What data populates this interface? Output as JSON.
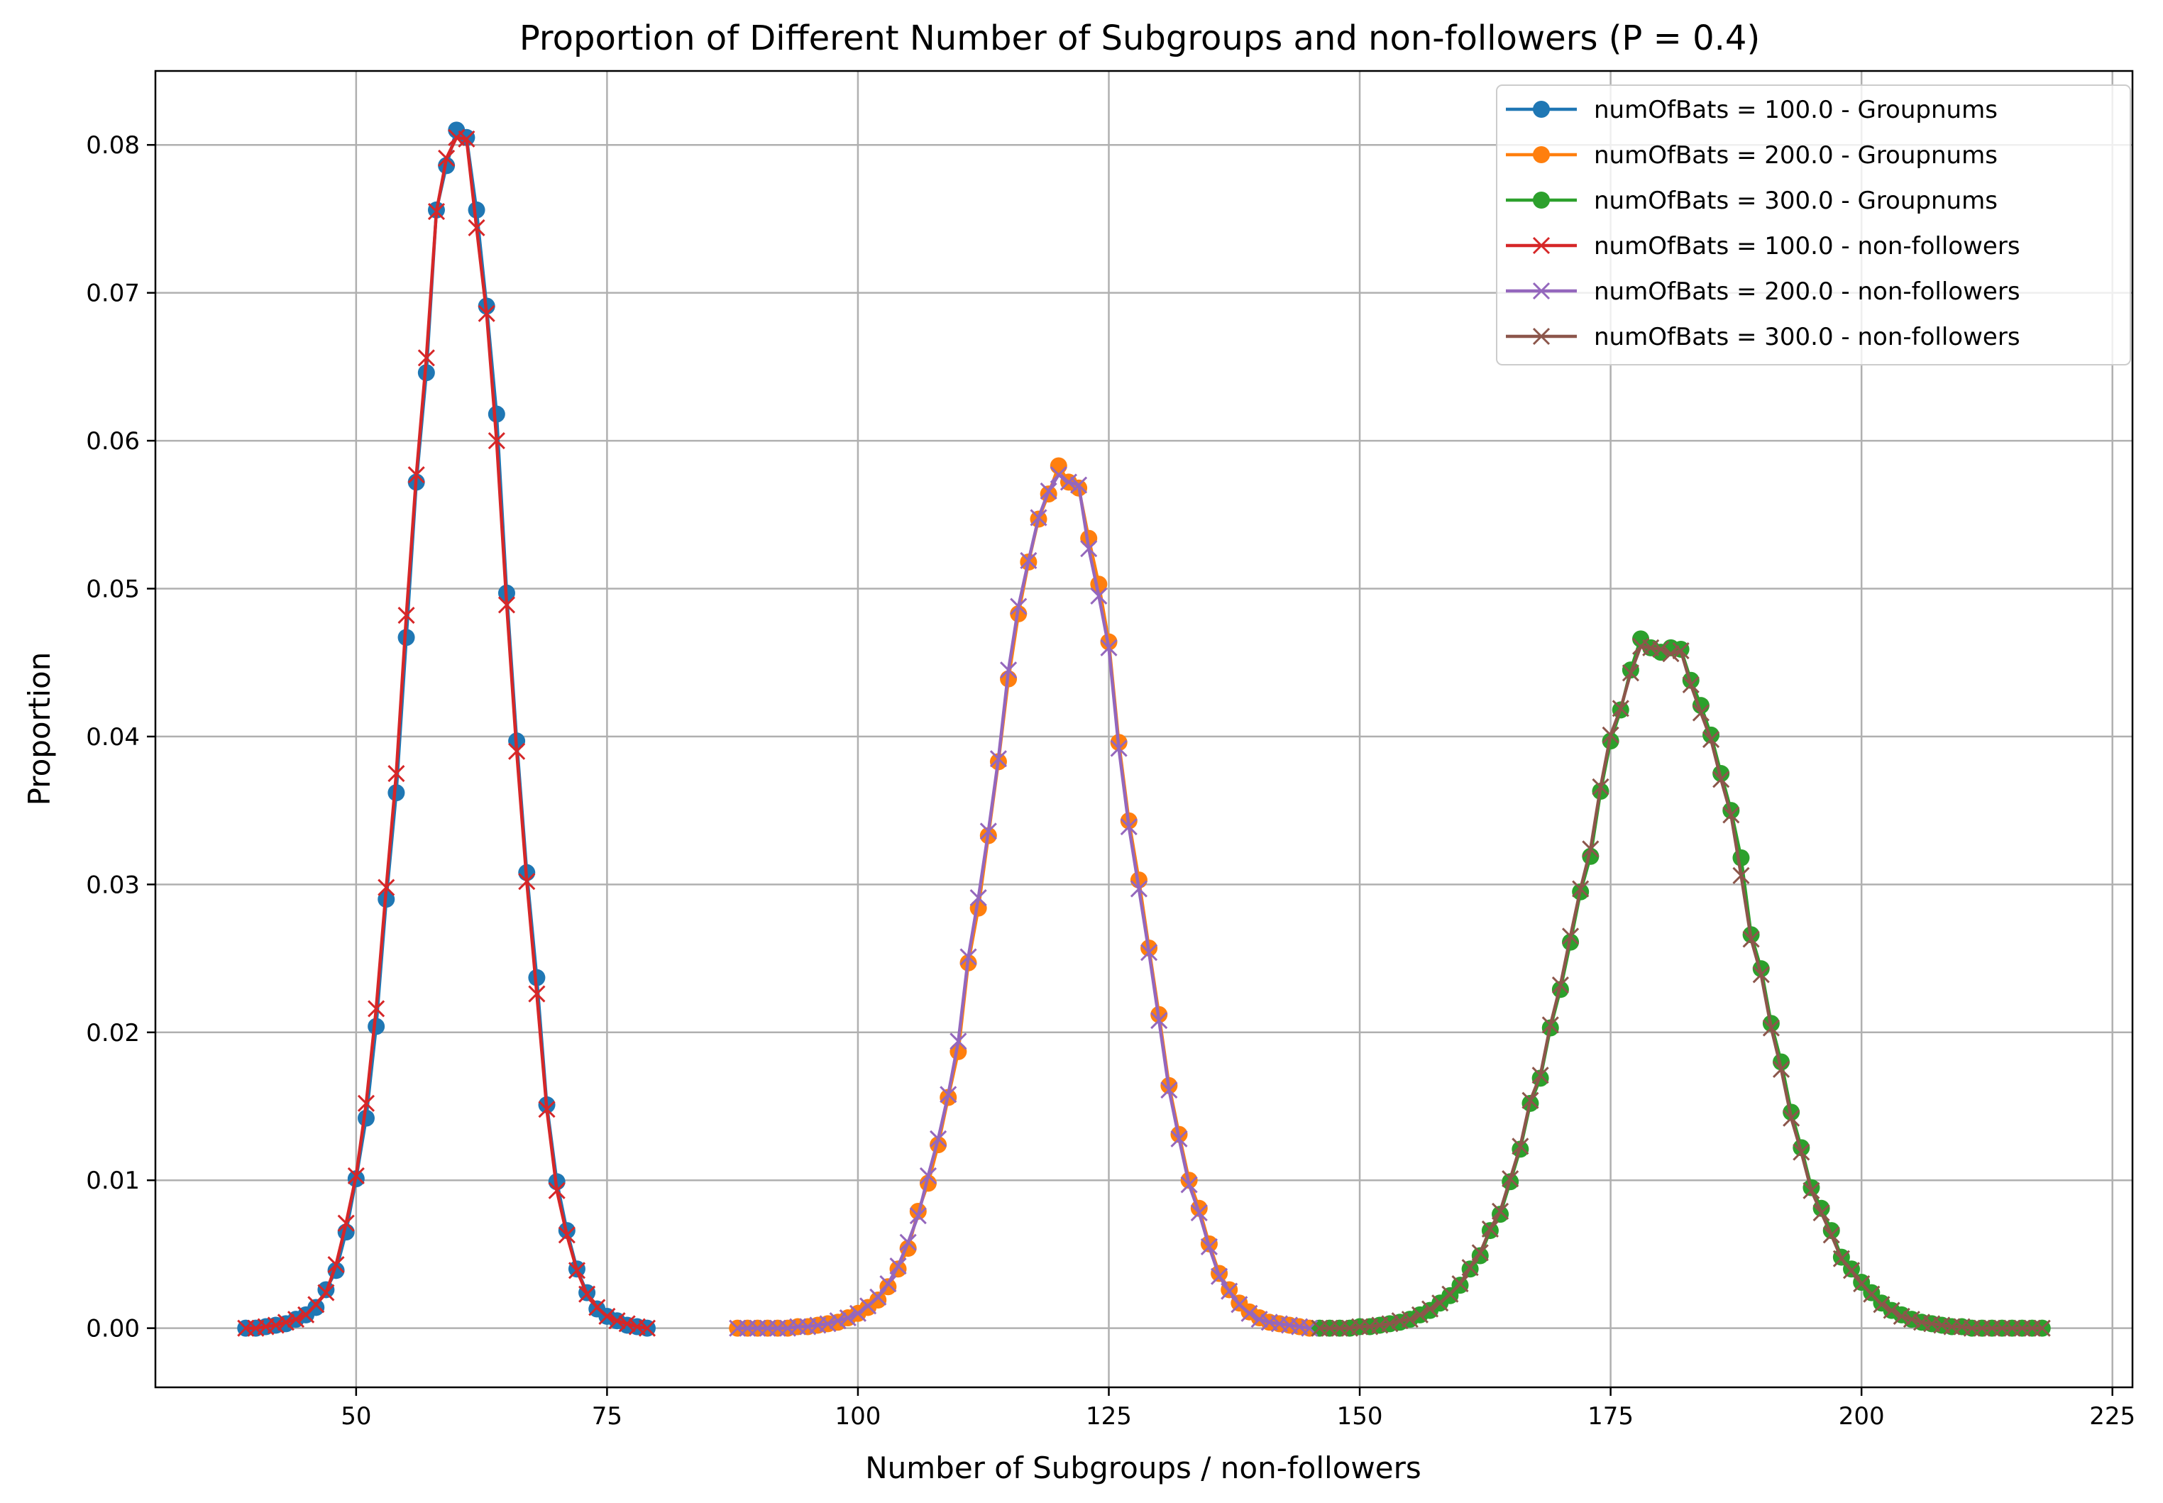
{
  "chart_data": {
    "type": "line",
    "title": "Proportion of Different Number of Subgroups and non-followers (P = 0.4)",
    "xlabel": "Number of Subgroups / non-followers",
    "ylabel": "Proportion",
    "xlim": [
      30,
      227
    ],
    "ylim": [
      -0.004,
      0.085
    ],
    "xticks": [
      50,
      75,
      100,
      125,
      150,
      175,
      200,
      225
    ],
    "xtick_labels": [
      "50",
      "75",
      "100",
      "125",
      "150",
      "175",
      "200",
      "225"
    ],
    "yticks": [
      0,
      0.01,
      0.02,
      0.03,
      0.04,
      0.05,
      0.06,
      0.07,
      0.08
    ],
    "ytick_labels": [
      "0.00",
      "0.01",
      "0.02",
      "0.03",
      "0.04",
      "0.05",
      "0.06",
      "0.07",
      "0.08"
    ],
    "grid": true,
    "legend_position": "top-right",
    "series": [
      {
        "name": "numOfBats = 100.0 - Groupnums",
        "color": "#1f77b4",
        "marker": "circle",
        "x": [
          39,
          40,
          41,
          42,
          43,
          44,
          45,
          46,
          47,
          48,
          49,
          50,
          51,
          52,
          53,
          54,
          55,
          56,
          57,
          58,
          59,
          60,
          61,
          62,
          63,
          64,
          65,
          66,
          67,
          68,
          69,
          70,
          71,
          72,
          73,
          74,
          75,
          76,
          77,
          78,
          79
        ],
        "y": [
          0.0,
          0.0,
          0.0001,
          0.0002,
          0.0003,
          0.0006,
          0.0009,
          0.0014,
          0.0026,
          0.0039,
          0.0065,
          0.0101,
          0.0142,
          0.0204,
          0.029,
          0.0362,
          0.0467,
          0.0572,
          0.0646,
          0.0756,
          0.0786,
          0.081,
          0.0805,
          0.0756,
          0.0691,
          0.0618,
          0.0497,
          0.0397,
          0.0308,
          0.0237,
          0.0151,
          0.0099,
          0.0066,
          0.004,
          0.0024,
          0.0013,
          0.0008,
          0.0005,
          0.0002,
          0.0001,
          0.0
        ]
      },
      {
        "name": "numOfBats = 200.0 - Groupnums",
        "color": "#ff7f0e",
        "marker": "circle",
        "x": [
          88,
          89,
          90,
          91,
          92,
          93,
          94,
          95,
          96,
          97,
          98,
          99,
          100,
          101,
          102,
          103,
          104,
          105,
          106,
          107,
          108,
          109,
          110,
          111,
          112,
          113,
          114,
          115,
          116,
          117,
          118,
          119,
          120,
          121,
          122,
          123,
          124,
          125,
          126,
          127,
          128,
          129,
          130,
          131,
          132,
          133,
          134,
          135,
          136,
          137,
          138,
          139,
          140,
          141,
          142,
          143,
          144,
          145
        ],
        "y": [
          0.0,
          0.0,
          0.0,
          0.0,
          0.0,
          0.0,
          0.0001,
          0.0001,
          0.0002,
          0.0003,
          0.0004,
          0.0007,
          0.001,
          0.0014,
          0.0019,
          0.0028,
          0.004,
          0.0054,
          0.0079,
          0.0098,
          0.0124,
          0.0156,
          0.0187,
          0.0247,
          0.0284,
          0.0333,
          0.0383,
          0.0439,
          0.0483,
          0.0518,
          0.0547,
          0.0564,
          0.0583,
          0.0572,
          0.0568,
          0.0534,
          0.0503,
          0.0464,
          0.0396,
          0.0343,
          0.0303,
          0.0257,
          0.0212,
          0.0164,
          0.0131,
          0.01,
          0.0081,
          0.0057,
          0.0037,
          0.0026,
          0.0017,
          0.0011,
          0.0007,
          0.0004,
          0.0003,
          0.0002,
          0.0001,
          0.0
        ]
      },
      {
        "name": "numOfBats = 300.0 - Groupnums",
        "color": "#2ca02c",
        "marker": "circle",
        "x": [
          146,
          147,
          148,
          149,
          150,
          151,
          152,
          153,
          154,
          155,
          156,
          157,
          158,
          159,
          160,
          161,
          162,
          163,
          164,
          165,
          166,
          167,
          168,
          169,
          170,
          171,
          172,
          173,
          174,
          175,
          176,
          177,
          178,
          179,
          180,
          181,
          182,
          183,
          184,
          185,
          186,
          187,
          188,
          189,
          190,
          191,
          192,
          193,
          194,
          195,
          196,
          197,
          198,
          199,
          200,
          201,
          202,
          203,
          204,
          205,
          206,
          207,
          208,
          209,
          210,
          211,
          212,
          213,
          214,
          215,
          216,
          217,
          218
        ],
        "y": [
          0.0,
          0.0,
          0.0,
          0.0,
          0.0001,
          0.0001,
          0.0002,
          0.0003,
          0.0004,
          0.0006,
          0.0009,
          0.0012,
          0.0017,
          0.0022,
          0.0029,
          0.004,
          0.0049,
          0.0066,
          0.0077,
          0.0099,
          0.0121,
          0.0152,
          0.0169,
          0.0203,
          0.0229,
          0.0261,
          0.0295,
          0.0319,
          0.0363,
          0.0397,
          0.0418,
          0.0445,
          0.0466,
          0.046,
          0.0457,
          0.046,
          0.0459,
          0.0438,
          0.0421,
          0.0401,
          0.0375,
          0.035,
          0.0318,
          0.0266,
          0.0243,
          0.0206,
          0.018,
          0.0146,
          0.0122,
          0.0095,
          0.0081,
          0.0066,
          0.0048,
          0.004,
          0.0031,
          0.0024,
          0.0017,
          0.0012,
          0.0009,
          0.0006,
          0.0004,
          0.0003,
          0.0002,
          0.0001,
          0.0001,
          0.0,
          0.0,
          0.0,
          0.0,
          0.0,
          0.0,
          0.0,
          0.0
        ]
      },
      {
        "name": "numOfBats = 100.0 - non-followers",
        "color": "#d62728",
        "marker": "x",
        "x": [
          39,
          40,
          41,
          42,
          43,
          44,
          45,
          46,
          47,
          48,
          49,
          50,
          51,
          52,
          53,
          54,
          55,
          56,
          57,
          58,
          59,
          60,
          61,
          62,
          63,
          64,
          65,
          66,
          67,
          68,
          69,
          70,
          71,
          72,
          73,
          74,
          75,
          76,
          77,
          78,
          79
        ],
        "y": [
          0.0,
          0.0,
          0.0001,
          0.0002,
          0.0004,
          0.0006,
          0.0009,
          0.0016,
          0.0024,
          0.0043,
          0.0071,
          0.0103,
          0.0152,
          0.0216,
          0.0298,
          0.0375,
          0.0482,
          0.0577,
          0.0656,
          0.0755,
          0.0791,
          0.0805,
          0.0804,
          0.0744,
          0.0686,
          0.06,
          0.0489,
          0.039,
          0.0302,
          0.0226,
          0.0148,
          0.0093,
          0.0063,
          0.0039,
          0.0023,
          0.0014,
          0.0008,
          0.0005,
          0.0003,
          0.0001,
          0.0
        ]
      },
      {
        "name": "numOfBats = 200.0 - non-followers",
        "color": "#9467bd",
        "marker": "x",
        "x": [
          88,
          89,
          90,
          91,
          92,
          93,
          94,
          95,
          96,
          97,
          98,
          99,
          100,
          101,
          102,
          103,
          104,
          105,
          106,
          107,
          108,
          109,
          110,
          111,
          112,
          113,
          114,
          115,
          116,
          117,
          118,
          119,
          120,
          121,
          122,
          123,
          124,
          125,
          126,
          127,
          128,
          129,
          130,
          131,
          132,
          133,
          134,
          135,
          136,
          137,
          138,
          139,
          140,
          141,
          142,
          143,
          144,
          145
        ],
        "y": [
          0.0,
          0.0,
          0.0,
          0.0,
          0.0,
          0.0,
          0.0001,
          0.0001,
          0.0002,
          0.0003,
          0.0005,
          0.0007,
          0.001,
          0.0015,
          0.0021,
          0.003,
          0.0042,
          0.0058,
          0.0076,
          0.0103,
          0.0128,
          0.0158,
          0.0194,
          0.0251,
          0.0291,
          0.0336,
          0.0385,
          0.0445,
          0.0488,
          0.0519,
          0.0548,
          0.0566,
          0.0577,
          0.0572,
          0.057,
          0.0527,
          0.0495,
          0.046,
          0.0392,
          0.0339,
          0.0297,
          0.0254,
          0.0208,
          0.0161,
          0.0128,
          0.0097,
          0.0078,
          0.0055,
          0.0035,
          0.0025,
          0.0016,
          0.001,
          0.0006,
          0.0004,
          0.0003,
          0.0002,
          0.0001,
          0.0
        ]
      },
      {
        "name": "numOfBats = 300.0 - non-followers",
        "color": "#8c564b",
        "marker": "x",
        "x": [
          146,
          147,
          148,
          149,
          150,
          151,
          152,
          153,
          154,
          155,
          156,
          157,
          158,
          159,
          160,
          161,
          162,
          163,
          164,
          165,
          166,
          167,
          168,
          169,
          170,
          171,
          172,
          173,
          174,
          175,
          176,
          177,
          178,
          179,
          180,
          181,
          182,
          183,
          184,
          185,
          186,
          187,
          188,
          189,
          190,
          191,
          192,
          193,
          194,
          195,
          196,
          197,
          198,
          199,
          200,
          201,
          202,
          203,
          204,
          205,
          206,
          207,
          208,
          209,
          210,
          211,
          212,
          213,
          214,
          215,
          216,
          217,
          218
        ],
        "y": [
          0.0,
          0.0,
          0.0,
          0.0,
          0.0001,
          0.0001,
          0.0002,
          0.0003,
          0.0005,
          0.0006,
          0.0009,
          0.0013,
          0.0017,
          0.0023,
          0.003,
          0.0041,
          0.0051,
          0.0067,
          0.0079,
          0.0101,
          0.0123,
          0.0154,
          0.0171,
          0.0205,
          0.0232,
          0.0265,
          0.0297,
          0.0324,
          0.0366,
          0.0401,
          0.0419,
          0.0443,
          0.0461,
          0.046,
          0.0459,
          0.0456,
          0.0458,
          0.0435,
          0.0416,
          0.0398,
          0.0371,
          0.0347,
          0.0306,
          0.0263,
          0.0239,
          0.0203,
          0.0175,
          0.0142,
          0.0119,
          0.0093,
          0.0078,
          0.0063,
          0.0047,
          0.0039,
          0.003,
          0.0023,
          0.0016,
          0.0012,
          0.0008,
          0.0006,
          0.0004,
          0.0003,
          0.0002,
          0.0001,
          0.0001,
          0.0,
          0.0,
          0.0,
          0.0,
          0.0,
          0.0,
          0.0,
          0.0
        ]
      }
    ]
  }
}
